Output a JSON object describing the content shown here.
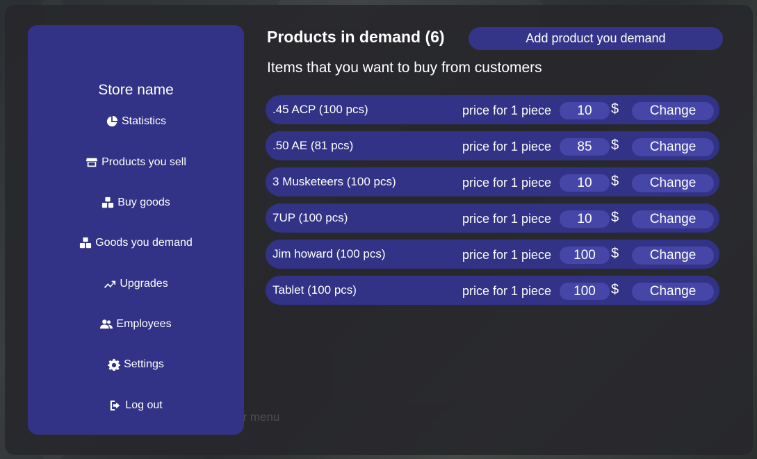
{
  "sidebar": {
    "store_name": "Store name",
    "items": [
      {
        "label": "Statistics",
        "icon": "pie-chart-icon"
      },
      {
        "label": "Products you sell",
        "icon": "store-icon"
      },
      {
        "label": "Buy goods",
        "icon": "boxes-icon"
      },
      {
        "label": "Goods you demand",
        "icon": "boxes-icon"
      },
      {
        "label": "Upgrades",
        "icon": "trend-up-icon"
      },
      {
        "label": "Employees",
        "icon": "users-icon"
      },
      {
        "label": "Settings",
        "icon": "gear-icon"
      },
      {
        "label": "Log out",
        "icon": "logout-icon"
      }
    ]
  },
  "background": {
    "faded_text": "er menu"
  },
  "main": {
    "title": "Products in demand (6)",
    "add_button_label": "Add product you demand",
    "subtitle": "Items that you want to buy from customers",
    "price_label": "price for 1 piece",
    "currency": "$",
    "change_label": "Change",
    "products": [
      {
        "name": ".45 ACP (100 pcs)",
        "price": "10"
      },
      {
        "name": ".50 AE (81 pcs)",
        "price": "85"
      },
      {
        "name": "3 Musketeers (100 pcs)",
        "price": "10"
      },
      {
        "name": "7UP (100 pcs)",
        "price": "10"
      },
      {
        "name": "Jim howard (100 pcs)",
        "price": "100"
      },
      {
        "name": "Tablet (100 pcs)",
        "price": "100"
      }
    ]
  }
}
